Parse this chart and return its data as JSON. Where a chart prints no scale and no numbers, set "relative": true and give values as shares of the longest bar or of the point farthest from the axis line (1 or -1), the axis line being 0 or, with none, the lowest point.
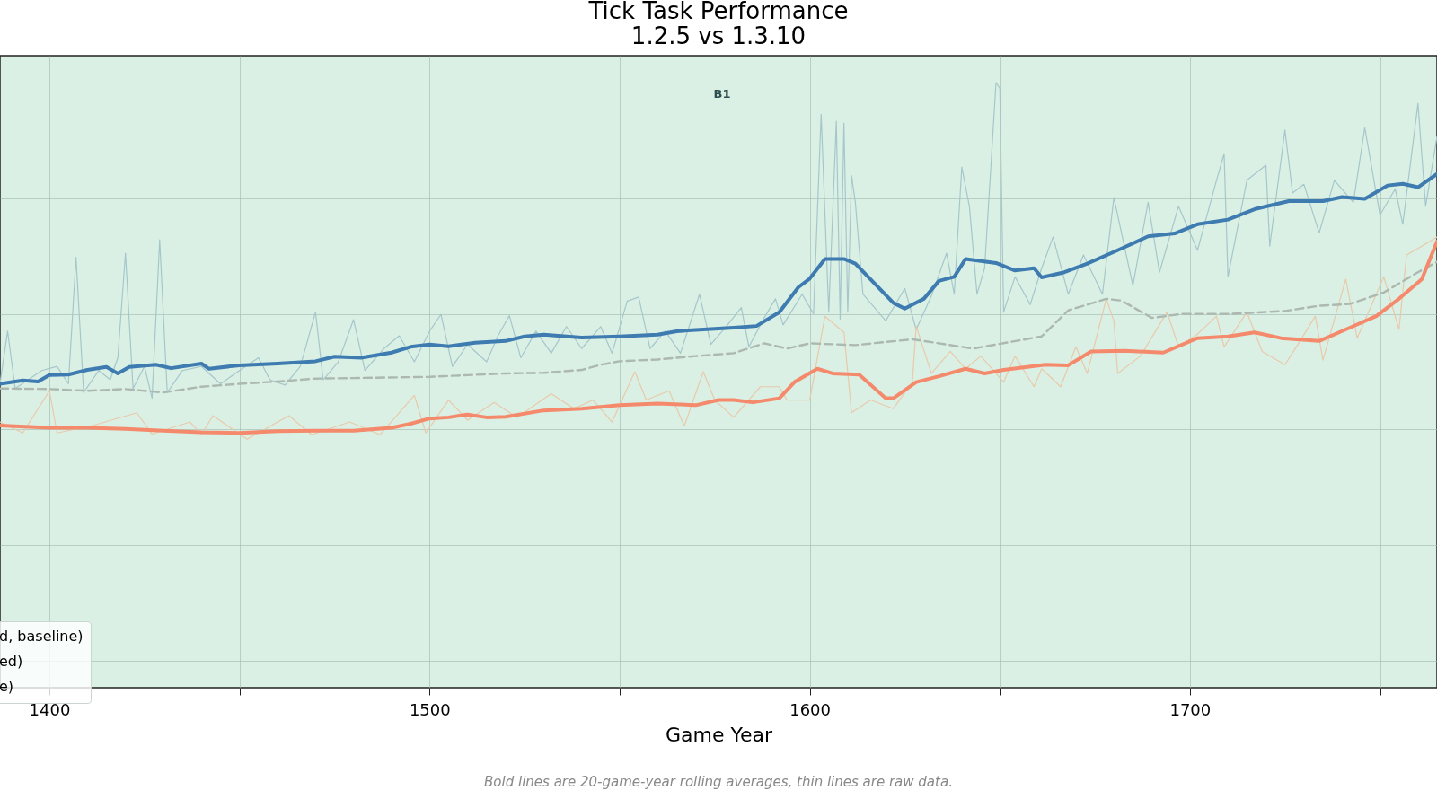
{
  "chart_data": {
    "type": "line",
    "title": "Tick Task Performance",
    "subtitle": "1.2.5  vs  1.3.10",
    "xlabel": "Game Year",
    "relative": true,
    "grid": true,
    "xlim": [
      1387,
      1765
    ],
    "xticks": [
      1400,
      {
        "value": 1450,
        "label": null
      },
      1500,
      {
        "value": 1550,
        "label": null
      },
      1600,
      {
        "value": 1650,
        "label": null
      },
      1700,
      {
        "value": 1750,
        "label": null
      }
    ],
    "annotations": [
      "B1",
      "d, baseline)",
      "ed)",
      "e)",
      "Bold lines are 20-game-year rolling averages, thin lines are raw data."
    ],
    "series": [
      {
        "color": "#a6c6cc",
        "x": [
          1387,
          1389,
          1391,
          1398,
          1402,
          1405,
          1407,
          1409,
          1413,
          1416,
          1418,
          1420,
          1422,
          1425,
          1427,
          1429,
          1431,
          1435,
          1440,
          1445,
          1450,
          1455,
          1458,
          1462,
          1466,
          1470,
          1472,
          1476,
          1480,
          1483,
          1488,
          1492,
          1496,
          1500,
          1503,
          1506,
          1510,
          1515,
          1518,
          1521,
          1524,
          1528,
          1532,
          1536,
          1540,
          1545,
          1548,
          1552,
          1555,
          1558,
          1562,
          1566,
          1571,
          1574,
          1578,
          1582,
          1584,
          1588,
          1591,
          1593,
          1598,
          1601,
          1603,
          1605,
          1607,
          1608,
          1609,
          1610,
          1611,
          1612,
          1614,
          1620,
          1625,
          1628,
          1632,
          1636,
          1638,
          1640,
          1642,
          1644,
          1646,
          1649,
          1650,
          1651,
          1654,
          1658,
          1661,
          1664,
          1668,
          1672,
          1677,
          1680,
          1685,
          1689,
          1692,
          1697,
          1702,
          1707,
          1709,
          1710,
          1715,
          1720,
          1721,
          1725,
          1727,
          1730,
          1734,
          1738,
          1743,
          1746,
          1750,
          1754,
          1756,
          1760,
          1762,
          1765
        ],
        "values": [
          0.479,
          0.57,
          0.471,
          0.502,
          0.509,
          0.479,
          0.698,
          0.464,
          0.502,
          0.486,
          0.524,
          0.705,
          0.471,
          0.509,
          0.454,
          0.728,
          0.464,
          0.502,
          0.509,
          0.479,
          0.502,
          0.524,
          0.486,
          0.477,
          0.509,
          0.603,
          0.486,
          0.517,
          0.59,
          0.502,
          0.54,
          0.562,
          0.517,
          0.57,
          0.599,
          0.509,
          0.547,
          0.517,
          0.562,
          0.597,
          0.524,
          0.57,
          0.532,
          0.578,
          0.54,
          0.578,
          0.532,
          0.622,
          0.629,
          0.54,
          0.57,
          0.532,
          0.634,
          0.547,
          0.578,
          0.611,
          0.543,
          0.593,
          0.626,
          0.581,
          0.634,
          0.6,
          0.945,
          0.603,
          0.933,
          0.591,
          0.93,
          0.603,
          0.839,
          0.793,
          0.634,
          0.588,
          0.644,
          0.573,
          0.631,
          0.705,
          0.634,
          0.854,
          0.786,
          0.634,
          0.679,
          1,
          0.99,
          0.603,
          0.664,
          0.616,
          0.679,
          0.733,
          0.634,
          0.702,
          0.634,
          0.801,
          0.649,
          0.793,
          0.672,
          0.786,
          0.71,
          0.831,
          0.877,
          0.664,
          0.831,
          0.857,
          0.717,
          0.918,
          0.809,
          0.824,
          0.74,
          0.831,
          0.793,
          0.922,
          0.771,
          0.816,
          0.755,
          0.964,
          0.786,
          0.907
        ]
      },
      {
        "color": "#e9c9aa",
        "x": [
          1387,
          1393,
          1400,
          1402,
          1411,
          1423,
          1427,
          1437,
          1440,
          1443,
          1452,
          1463,
          1469,
          1479,
          1487,
          1496,
          1499,
          1505,
          1510,
          1517,
          1523,
          1532,
          1538,
          1543,
          1548,
          1554,
          1557,
          1563,
          1567,
          1572,
          1575,
          1580,
          1587,
          1592,
          1594,
          1600,
          1604,
          1609,
          1611,
          1616,
          1622,
          1627,
          1628,
          1632,
          1637,
          1641,
          1645,
          1651,
          1654,
          1659,
          1661,
          1666,
          1670,
          1673,
          1678,
          1680,
          1681,
          1687,
          1694,
          1697,
          1702,
          1707,
          1709,
          1715,
          1719,
          1725,
          1728,
          1733,
          1735,
          1741,
          1744,
          1751,
          1755,
          1757,
          1761,
          1765
        ],
        "values": [
          0.413,
          0.394,
          0.467,
          0.394,
          0.406,
          0.429,
          0.392,
          0.413,
          0.391,
          0.424,
          0.383,
          0.424,
          0.391,
          0.413,
          0.391,
          0.459,
          0.394,
          0.451,
          0.416,
          0.447,
          0.421,
          0.462,
          0.436,
          0.451,
          0.413,
          0.5,
          0.451,
          0.467,
          0.406,
          0.5,
          0.451,
          0.421,
          0.474,
          0.474,
          0.451,
          0.451,
          0.596,
          0.568,
          0.429,
          0.451,
          0.436,
          0.482,
          0.579,
          0.497,
          0.535,
          0.505,
          0.527,
          0.482,
          0.527,
          0.474,
          0.505,
          0.474,
          0.543,
          0.497,
          0.626,
          0.588,
          0.497,
          0.527,
          0.603,
          0.543,
          0.565,
          0.596,
          0.543,
          0.603,
          0.535,
          0.512,
          0.543,
          0.596,
          0.52,
          0.66,
          0.558,
          0.664,
          0.573,
          0.702,
          0.717,
          0.733
        ]
      },
      {
        "color": "#acb8b0",
        "line_style": "dashed",
        "x": [
          1387,
          1400,
          1410,
          1420,
          1430,
          1440,
          1450,
          1460,
          1470,
          1480,
          1500,
          1510,
          1520,
          1530,
          1540,
          1545,
          1550,
          1560,
          1570,
          1580,
          1588,
          1594,
          1600,
          1612,
          1627,
          1643,
          1661,
          1668,
          1678,
          1682,
          1690,
          1698,
          1711,
          1725,
          1734,
          1742,
          1751,
          1760,
          1765
        ],
        "values": [
          0.471,
          0.47,
          0.467,
          0.47,
          0.464,
          0.474,
          0.479,
          0.483,
          0.488,
          0.489,
          0.491,
          0.494,
          0.497,
          0.498,
          0.503,
          0.512,
          0.518,
          0.521,
          0.527,
          0.532,
          0.549,
          0.54,
          0.549,
          0.546,
          0.556,
          0.54,
          0.561,
          0.606,
          0.626,
          0.623,
          0.593,
          0.6,
          0.6,
          0.605,
          0.614,
          0.617,
          0.637,
          0.672,
          0.69
        ]
      },
      {
        "color": "#f4896b",
        "x": [
          1387,
          1400,
          1410,
          1420,
          1430,
          1440,
          1450,
          1460,
          1470,
          1480,
          1490,
          1495,
          1500,
          1505,
          1510,
          1515,
          1520,
          1530,
          1540,
          1550,
          1560,
          1570,
          1576,
          1580,
          1585,
          1592,
          1596,
          1602,
          1606,
          1613,
          1620,
          1622,
          1628,
          1634,
          1641,
          1646,
          1651,
          1662,
          1668,
          1674,
          1683,
          1693,
          1702,
          1710,
          1717,
          1724,
          1734,
          1741,
          1749,
          1755,
          1761,
          1765
        ],
        "values": [
          0.407,
          0.403,
          0.403,
          0.401,
          0.398,
          0.395,
          0.394,
          0.397,
          0.398,
          0.398,
          0.403,
          0.41,
          0.419,
          0.421,
          0.426,
          0.421,
          0.422,
          0.433,
          0.436,
          0.442,
          0.445,
          0.442,
          0.451,
          0.451,
          0.447,
          0.454,
          0.482,
          0.505,
          0.497,
          0.495,
          0.454,
          0.454,
          0.482,
          0.492,
          0.505,
          0.497,
          0.503,
          0.512,
          0.511,
          0.535,
          0.536,
          0.533,
          0.558,
          0.561,
          0.568,
          0.558,
          0.553,
          0.573,
          0.596,
          0.626,
          0.66,
          0.725
        ]
      },
      {
        "color": "#3d7bb0",
        "x": [
          1387,
          1393,
          1397,
          1400,
          1405,
          1410,
          1415,
          1418,
          1421,
          1428,
          1432,
          1440,
          1442,
          1450,
          1460,
          1470,
          1475,
          1482,
          1490,
          1495,
          1500,
          1505,
          1512,
          1520,
          1525,
          1530,
          1540,
          1550,
          1560,
          1565,
          1572,
          1580,
          1586,
          1592,
          1597,
          1600,
          1604,
          1609,
          1612,
          1618,
          1622,
          1625,
          1630,
          1634,
          1638,
          1641,
          1649,
          1654,
          1659,
          1661,
          1667,
          1673,
          1681,
          1689,
          1696,
          1702,
          1710,
          1717,
          1726,
          1735,
          1740,
          1746,
          1752,
          1756,
          1760,
          1765
        ],
        "values": [
          0.479,
          0.485,
          0.483,
          0.494,
          0.495,
          0.503,
          0.508,
          0.497,
          0.508,
          0.512,
          0.506,
          0.514,
          0.505,
          0.511,
          0.514,
          0.518,
          0.526,
          0.524,
          0.533,
          0.543,
          0.547,
          0.544,
          0.55,
          0.553,
          0.561,
          0.564,
          0.559,
          0.561,
          0.564,
          0.57,
          0.573,
          0.576,
          0.579,
          0.603,
          0.646,
          0.661,
          0.695,
          0.695,
          0.687,
          0.646,
          0.619,
          0.609,
          0.626,
          0.657,
          0.664,
          0.695,
          0.688,
          0.675,
          0.679,
          0.663,
          0.672,
          0.687,
          0.71,
          0.734,
          0.739,
          0.755,
          0.763,
          0.781,
          0.795,
          0.795,
          0.802,
          0.799,
          0.822,
          0.825,
          0.819,
          0.842
        ]
      }
    ]
  }
}
